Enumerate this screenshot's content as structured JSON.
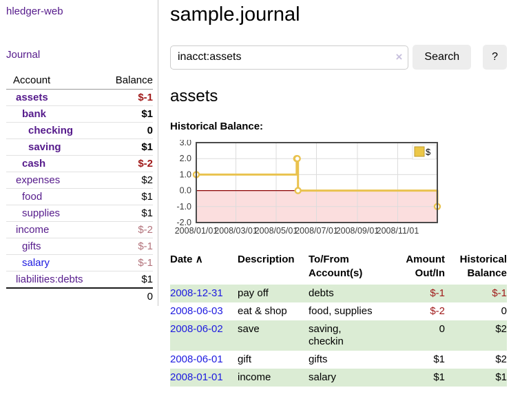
{
  "app": {
    "title": "hledger-web",
    "nav": {
      "journal": "Journal"
    }
  },
  "sidebar": {
    "headers": {
      "account": "Account",
      "balance": "Balance"
    },
    "accounts": [
      {
        "name": "assets",
        "level": 1,
        "bold": true,
        "balance": "$-1",
        "balance_style": "negative"
      },
      {
        "name": "bank",
        "level": 2,
        "bold": true,
        "balance": "$1",
        "balance_style": "positive"
      },
      {
        "name": "checking",
        "level": 3,
        "bold": true,
        "balance": "0",
        "balance_style": "positive"
      },
      {
        "name": "saving",
        "level": 3,
        "bold": true,
        "balance": "$1",
        "balance_style": "positive"
      },
      {
        "name": "cash",
        "level": 2,
        "bold": true,
        "balance": "$-2",
        "balance_style": "negative"
      },
      {
        "name": "expenses",
        "level": 1,
        "bold": false,
        "balance": "$2",
        "balance_style": "positive"
      },
      {
        "name": "food",
        "level": 2,
        "bold": false,
        "balance": "$1",
        "balance_style": "positive"
      },
      {
        "name": "supplies",
        "level": 2,
        "bold": false,
        "balance": "$1",
        "balance_style": "positive"
      },
      {
        "name": "income",
        "level": 1,
        "bold": false,
        "balance": "$-2",
        "balance_style": "negative-muted"
      },
      {
        "name": "gifts",
        "level": 2,
        "bold": false,
        "balance": "$-1",
        "balance_style": "negative-muted"
      },
      {
        "name": "salary",
        "level": 2,
        "bold": false,
        "link_color": "blue",
        "balance": "$-1",
        "balance_style": "negative-muted"
      },
      {
        "name": "liabilities:debts",
        "level": 1,
        "bold": false,
        "balance": "$1",
        "balance_style": "positive"
      }
    ],
    "total": "0"
  },
  "main": {
    "title": "sample.journal",
    "search": {
      "value": "inacct:assets",
      "clear_icon": "×",
      "search_button": "Search",
      "help_button": "?"
    },
    "heading": "assets",
    "chart_title": "Historical Balance:"
  },
  "chart_data": {
    "type": "line",
    "step": true,
    "title": "Historical Balance:",
    "series": [
      {
        "name": "$",
        "color": "#e9c24e",
        "points": [
          [
            "2008-01-01",
            1
          ],
          [
            "2008-06-01",
            2
          ],
          [
            "2008-06-02",
            2
          ],
          [
            "2008-06-03",
            0
          ],
          [
            "2008-12-31",
            -1
          ]
        ]
      }
    ],
    "x_range": [
      "2008-01-01",
      "2008-12-31"
    ],
    "ylim": [
      -2,
      3
    ],
    "yticks": [
      "3.0",
      "2.0",
      "1.0",
      "0.0",
      "-1.0",
      "-2.0"
    ],
    "xticks": [
      "2008/01/01",
      "2008/03/01",
      "2008/05/01",
      "2008/07/01",
      "2008/09/01",
      "2008/11/01"
    ],
    "grid": true,
    "legend": {
      "label": "$",
      "position": "top-right"
    },
    "negative_region_color": "#fbdede",
    "zero_line_color": "#8b0000",
    "marker": "open-circle"
  },
  "register": {
    "headers": [
      "Date",
      "Description",
      "To/From Account(s)",
      "Amount Out/In",
      "Historical Balance"
    ],
    "sort_icon": "∧",
    "rows": [
      {
        "date": "2008-12-31",
        "description": "pay off",
        "accounts": "debts",
        "amount": "$-1",
        "amount_negative": true,
        "balance": "$-1",
        "balance_negative": true
      },
      {
        "date": "2008-06-03",
        "description": "eat & shop",
        "accounts": "food, supplies",
        "amount": "$-2",
        "amount_negative": true,
        "balance": "0",
        "balance_negative": false
      },
      {
        "date": "2008-06-02",
        "description": "save",
        "accounts": "saving,\ncheckin",
        "amount": "0",
        "amount_negative": false,
        "balance": "$2",
        "balance_negative": false
      },
      {
        "date": "2008-06-01",
        "description": "gift",
        "accounts": "gifts",
        "amount": "$1",
        "amount_negative": false,
        "balance": "$2",
        "balance_negative": false
      },
      {
        "date": "2008-01-01",
        "description": "income",
        "accounts": "salary",
        "amount": "$1",
        "amount_negative": false,
        "balance": "$1",
        "balance_negative": false
      }
    ]
  }
}
